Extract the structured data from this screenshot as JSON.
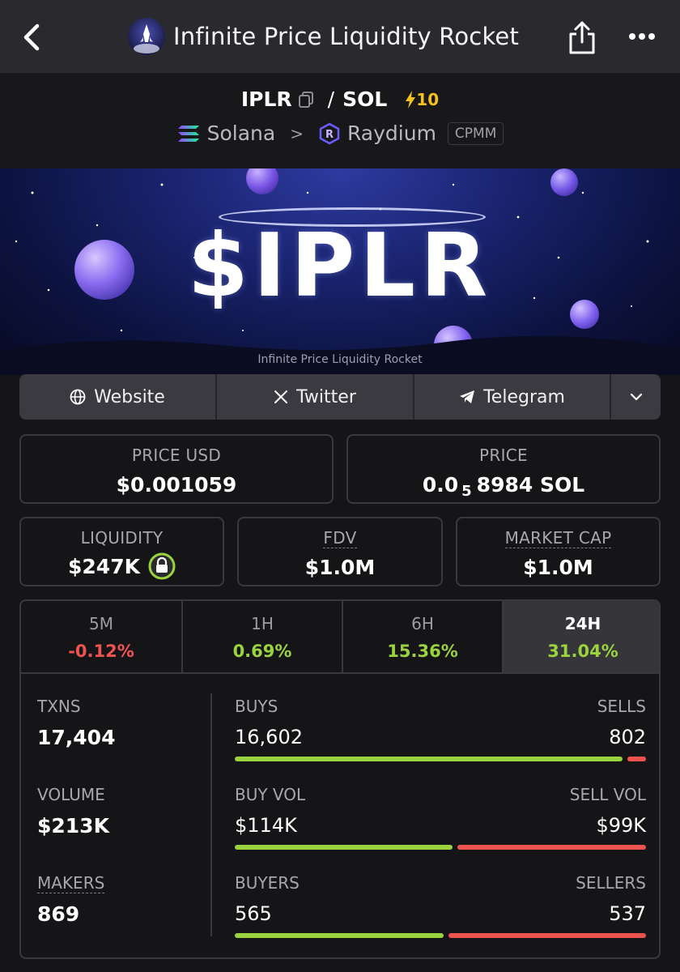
{
  "nav": {
    "title": "Infinite Price Liquidity Rocket",
    "back_icon": "chevron-left-icon",
    "share_icon": "share-icon",
    "more_icon": "more-dots-icon"
  },
  "pair": {
    "base": "IPLR",
    "separator": "/",
    "quote": "SOL",
    "boost": "10",
    "chain": "Solana",
    "dex": "Raydium",
    "pool_type": "CPMM"
  },
  "banner": {
    "ticker": "$IPLR",
    "subtitle": "Infinite Price Liquidity Rocket"
  },
  "links": {
    "website": "Website",
    "twitter": "Twitter",
    "telegram": "Telegram"
  },
  "stats": {
    "price_usd_label": "PRICE USD",
    "price_usd": "$0.001059",
    "price_label": "PRICE",
    "price_prefix": "0.0",
    "price_zeros": "5",
    "price_suffix": "8984 SOL",
    "liquidity_label": "LIQUIDITY",
    "liquidity": "$247K",
    "fdv_label": "FDV",
    "fdv": "$1.0M",
    "mcap_label": "MARKET CAP",
    "mcap": "$1.0M"
  },
  "timeframes": [
    {
      "label": "5M",
      "change": "-0.12%"
    },
    {
      "label": "1H",
      "change": "0.69%"
    },
    {
      "label": "6H",
      "change": "15.36%"
    },
    {
      "label": "24H",
      "change": "31.04%"
    }
  ],
  "activity": {
    "txns_label": "TXNS",
    "txns": "17,404",
    "volume_label": "VOLUME",
    "volume": "$213K",
    "makers_label": "MAKERS",
    "makers": "869",
    "buys_label": "BUYS",
    "buys": "16,602",
    "sells_label": "SELLS",
    "sells": "802",
    "buy_vol_label": "BUY VOL",
    "buy_vol": "$114K",
    "sell_vol_label": "SELL VOL",
    "sell_vol": "$99K",
    "buyers_label": "BUYERS",
    "buyers": "565",
    "sellers_label": "SELLERS",
    "sellers": "537",
    "buys_ratio": 0.954,
    "buy_vol_ratio": 0.535,
    "buyers_ratio": 0.513
  },
  "colors": {
    "positive": "#9bd33f",
    "negative": "#ef5350",
    "boost": "#f5c21b"
  }
}
